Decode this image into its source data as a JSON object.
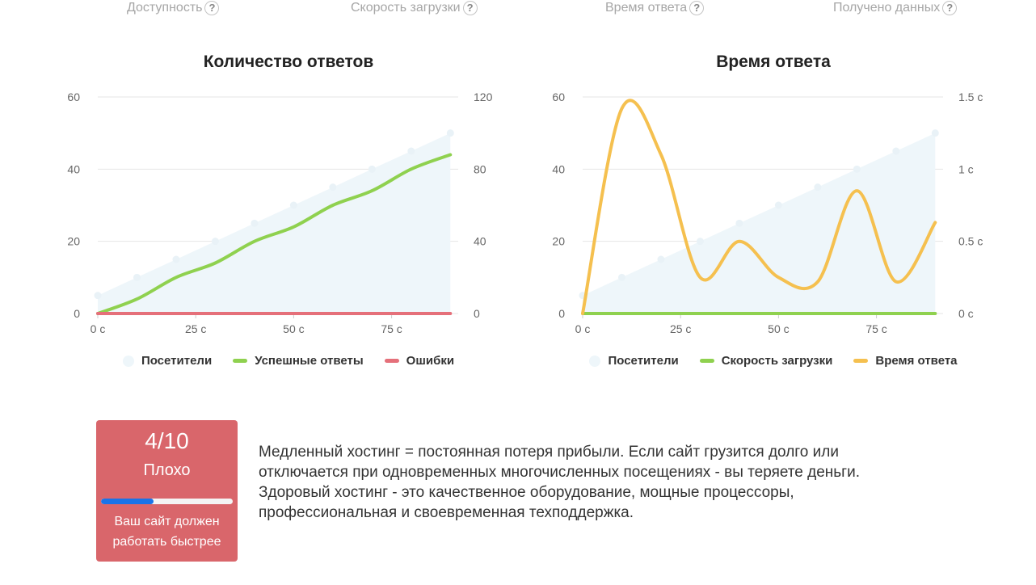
{
  "tabs": [
    {
      "label": "Доступность"
    },
    {
      "label": "Скорость загрузки"
    },
    {
      "label": "Время ответа"
    },
    {
      "label": "Получено данных"
    }
  ],
  "tab_help_glyph": "?",
  "charts": [
    {
      "title": "Количество ответов",
      "legend": [
        {
          "label": "Посетители",
          "color": "#eef6fa",
          "shape": "dot"
        },
        {
          "label": "Успешные ответы",
          "color": "#8fd14f",
          "shape": "line"
        },
        {
          "label": "Ошибки",
          "color": "#e5707a",
          "shape": "line"
        }
      ]
    },
    {
      "title": "Время ответа",
      "legend": [
        {
          "label": "Посетители",
          "color": "#eef6fa",
          "shape": "dot"
        },
        {
          "label": "Скорость загрузки",
          "color": "#8fd14f",
          "shape": "line"
        },
        {
          "label": "Время ответа",
          "color": "#f5c04f",
          "shape": "line"
        }
      ]
    }
  ],
  "chart_data": [
    {
      "type": "line",
      "title": "Количество ответов",
      "x": [
        0,
        10,
        20,
        30,
        40,
        50,
        60,
        70,
        80,
        90
      ],
      "xticks": [
        "0 с",
        "25 с",
        "50 с",
        "75 с"
      ],
      "xtick_values": [
        0,
        25,
        50,
        75
      ],
      "xlim": [
        0,
        92
      ],
      "ylim_left": [
        0,
        60
      ],
      "yticks_left": [
        "0",
        "20",
        "40",
        "60"
      ],
      "ylim_right": [
        0,
        120
      ],
      "yticks_right": [
        "0",
        "40",
        "80",
        "120"
      ],
      "grid": true,
      "legend_position": "bottom",
      "series": [
        {
          "name": "Посетители",
          "type": "area",
          "axis": "left",
          "color": "#eef6fa",
          "values": [
            5,
            10,
            15,
            20,
            25,
            30,
            35,
            40,
            45,
            50
          ]
        },
        {
          "name": "Успешные ответы",
          "type": "line",
          "axis": "right",
          "color": "#8fd14f",
          "values": [
            0,
            8,
            20,
            28,
            40,
            48,
            60,
            68,
            80,
            88
          ]
        },
        {
          "name": "Ошибки",
          "type": "line",
          "axis": "right",
          "color": "#e5707a",
          "values": [
            0,
            0,
            0,
            0,
            0,
            0,
            0,
            0,
            0,
            0
          ]
        }
      ]
    },
    {
      "type": "line",
      "title": "Время ответа",
      "x": [
        0,
        10,
        20,
        30,
        40,
        50,
        60,
        70,
        80,
        90
      ],
      "xticks": [
        "0 с",
        "25 с",
        "50 с",
        "75 с"
      ],
      "xtick_values": [
        0,
        25,
        50,
        75
      ],
      "xlim": [
        0,
        92
      ],
      "ylim_left": [
        0,
        60
      ],
      "yticks_left": [
        "0",
        "20",
        "40",
        "60"
      ],
      "ylim_right": [
        0,
        1.5
      ],
      "yticks_right": [
        "0 с",
        "0.5 с",
        "1 с",
        "1.5 с"
      ],
      "grid": true,
      "legend_position": "bottom",
      "series": [
        {
          "name": "Посетители",
          "type": "area",
          "axis": "left",
          "color": "#eef6fa",
          "values": [
            5,
            10,
            15,
            20,
            25,
            30,
            35,
            40,
            45,
            50
          ]
        },
        {
          "name": "Скорость загрузки",
          "type": "line",
          "axis": "right",
          "color": "#8fd14f",
          "values": [
            0,
            0,
            0,
            0,
            0,
            0,
            0,
            0,
            0,
            0
          ]
        },
        {
          "name": "Время ответа",
          "type": "line",
          "axis": "right",
          "color": "#f5c04f",
          "values": [
            0,
            1.42,
            1.1,
            0.25,
            0.5,
            0.25,
            0.22,
            0.85,
            0.22,
            0.63
          ]
        }
      ]
    }
  ],
  "score": {
    "value": "4/10",
    "grade": "Плохо",
    "hint": "Ваш сайт должен работать быстрее",
    "progress": 0.4,
    "bg_color": "#d9666b",
    "progress_color": "#1a73e8"
  },
  "description": "Медленный хостинг = постоянная потеря прибыли. Если сайт грузится долго или отключается при одновременных многочисленных посещениях - вы теряете деньги. Здоровый хостинг - это качественное оборудование, мощные процессоры, профессиональная и своевременная техподдержка."
}
